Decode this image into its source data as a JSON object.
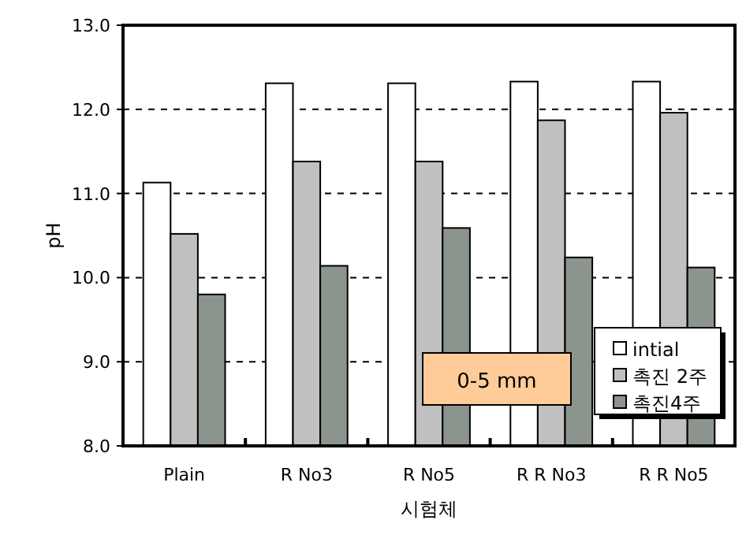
{
  "chart_data": {
    "type": "bar",
    "xlabel": "시험체",
    "ylabel": "pH",
    "categories": [
      "Plain",
      "R No3",
      "R No5",
      "R R No3",
      "R R No5"
    ],
    "series": [
      {
        "name": "intial",
        "color": "#ffffff",
        "values": [
          11.13,
          12.31,
          12.31,
          12.33,
          12.33
        ]
      },
      {
        "name": "촉진 2주",
        "color": "#c0c0c0",
        "values": [
          10.52,
          11.38,
          11.38,
          11.87,
          11.96
        ]
      },
      {
        "name": "촉진4주",
        "color": "#8c948e",
        "values": [
          9.8,
          10.14,
          10.59,
          10.24,
          10.12
        ]
      }
    ],
    "ylim": [
      8,
      13
    ],
    "yticks": [
      {
        "value": 8,
        "label": "8.0"
      },
      {
        "value": 9,
        "label": "9.0"
      },
      {
        "value": 10,
        "label": "10.0"
      },
      {
        "value": 11,
        "label": "11.0"
      },
      {
        "value": 12,
        "label": "12.0"
      },
      {
        "value": 13,
        "label": "13.0"
      }
    ],
    "grid": "y",
    "legend": "bottom right",
    "annotations": [
      "0-5 mm"
    ]
  }
}
